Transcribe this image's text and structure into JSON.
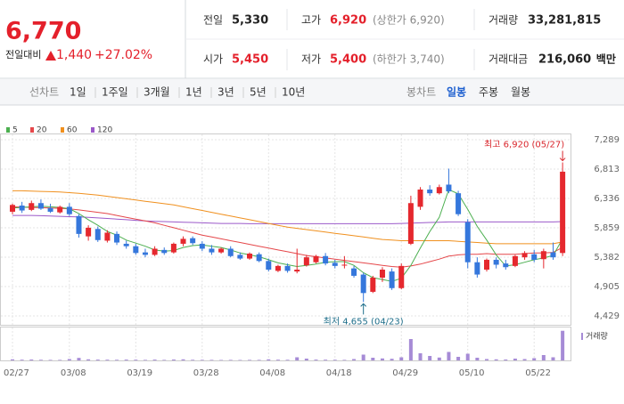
{
  "quote": {
    "price": "6,770",
    "change_label": "전일대비",
    "change": "1,440",
    "change_pct": "+27.02%",
    "fields": [
      {
        "label": "전일",
        "value": "5,330"
      },
      {
        "label": "고가",
        "value": "6,920",
        "note": "(상한가 6,920)"
      },
      {
        "label": "거래량",
        "value": "33,281,815"
      },
      {
        "label": "시가",
        "value": "5,450"
      },
      {
        "label": "저가",
        "value": "5,400",
        "note": "(하한가 3,740)"
      },
      {
        "label": "거래대금",
        "value": "216,060",
        "note": "백만"
      }
    ]
  },
  "toolbar": {
    "line_label": "선차트",
    "periods": [
      "1일",
      "1주일",
      "3개월",
      "1년",
      "3년",
      "5년",
      "10년"
    ],
    "candle_label": "봉차트",
    "candle_periods": [
      "일봉",
      "주봉",
      "월봉"
    ]
  },
  "chart_data": {
    "type": "candlestick",
    "categories": [
      "02/27",
      null,
      null,
      null,
      null,
      null,
      "03/08",
      null,
      null,
      null,
      null,
      null,
      null,
      "03/19",
      null,
      null,
      null,
      null,
      null,
      null,
      "03/28",
      null,
      null,
      null,
      null,
      null,
      null,
      "04/08",
      null,
      null,
      null,
      null,
      null,
      null,
      "04/18",
      null,
      null,
      null,
      null,
      null,
      null,
      "04/29",
      null,
      null,
      null,
      null,
      null,
      null,
      "05/10",
      null,
      null,
      null,
      null,
      null,
      null,
      "05/22",
      null,
      null,
      null
    ],
    "open": [
      6120,
      6220,
      6150,
      6260,
      6180,
      6110,
      6200,
      6050,
      5720,
      5840,
      5650,
      5760,
      5600,
      5560,
      5460,
      5420,
      5500,
      5460,
      5600,
      5690,
      5600,
      5520,
      5460,
      5520,
      5420,
      5360,
      5430,
      5320,
      5160,
      5240,
      5150,
      5250,
      5300,
      5400,
      5290,
      5250,
      5200,
      5100,
      4820,
      5050,
      5150,
      4880,
      5600,
      6200,
      6480,
      6420,
      6560,
      6420,
      5950,
      5300,
      5180,
      5340,
      5280,
      5240,
      5380,
      5430,
      5350,
      5460,
      5450
    ],
    "high": [
      6250,
      6280,
      6300,
      6320,
      6250,
      6220,
      6260,
      6080,
      5900,
      5880,
      5820,
      5800,
      5650,
      5600,
      5520,
      5560,
      5540,
      5620,
      5720,
      5720,
      5640,
      5580,
      5540,
      5560,
      5460,
      5460,
      5460,
      5360,
      5260,
      5280,
      5520,
      5420,
      5420,
      5450,
      5340,
      5400,
      5240,
      5130,
      5080,
      5220,
      5200,
      5280,
      6380,
      6520,
      6550,
      6560,
      6820,
      6460,
      6000,
      5380,
      5360,
      5380,
      5340,
      5420,
      5480,
      5500,
      5520,
      5620,
      6920
    ],
    "low": [
      6080,
      6100,
      6130,
      6150,
      6100,
      6090,
      6050,
      5700,
      5650,
      5630,
      5620,
      5580,
      5520,
      5420,
      5380,
      5400,
      5420,
      5440,
      5560,
      5580,
      5480,
      5420,
      5440,
      5380,
      5340,
      5340,
      5300,
      5150,
      5140,
      5130,
      5120,
      5230,
      5280,
      5250,
      5200,
      5200,
      5050,
      4655,
      4800,
      4980,
      4850,
      4860,
      5580,
      6150,
      6380,
      6400,
      6420,
      6050,
      5200,
      5050,
      5150,
      5200,
      5180,
      5220,
      5340,
      5300,
      5200,
      5340,
      5400
    ],
    "close": [
      6230,
      6140,
      6260,
      6170,
      6120,
      6200,
      6080,
      5760,
      5860,
      5660,
      5780,
      5620,
      5560,
      5450,
      5420,
      5520,
      5450,
      5600,
      5680,
      5610,
      5520,
      5460,
      5520,
      5400,
      5360,
      5440,
      5320,
      5180,
      5240,
      5160,
      5180,
      5380,
      5400,
      5280,
      5240,
      5260,
      5080,
      4800,
      5050,
      5180,
      4880,
      5240,
      6260,
      6480,
      6420,
      6520,
      6450,
      6080,
      5300,
      5100,
      5340,
      5260,
      5220,
      5400,
      5450,
      5340,
      5480,
      5380,
      6770
    ],
    "up_color": "#e5282e",
    "down_color": "#3577dc",
    "series": [
      {
        "name": "5",
        "color": "#4caf50",
        "values": [
          6180,
          6190,
          6200,
          6210,
          6200,
          6190,
          6170,
          6090,
          5990,
          5900,
          5800,
          5740,
          5660,
          5610,
          5560,
          5500,
          5480,
          5490,
          5540,
          5570,
          5580,
          5560,
          5540,
          5500,
          5450,
          5420,
          5390,
          5340,
          5290,
          5260,
          5230,
          5250,
          5270,
          5300,
          5310,
          5310,
          5250,
          5130,
          5050,
          5020,
          4990,
          5040,
          5250,
          5530,
          5800,
          6030,
          6480,
          6410,
          6160,
          5880,
          5660,
          5420,
          5240,
          5260,
          5300,
          5340,
          5370,
          5410,
          5680
        ]
      },
      {
        "name": "20",
        "color": "#e5474a",
        "values": [
          6200,
          6195,
          6190,
          6185,
          6180,
          6175,
          6165,
          6150,
          6130,
          6110,
          6090,
          6060,
          6030,
          6000,
          5970,
          5940,
          5900,
          5860,
          5820,
          5780,
          5740,
          5710,
          5680,
          5650,
          5620,
          5590,
          5560,
          5530,
          5500,
          5470,
          5440,
          5410,
          5390,
          5370,
          5350,
          5330,
          5310,
          5290,
          5270,
          5250,
          5230,
          5220,
          5240,
          5270,
          5310,
          5350,
          5400,
          5420,
          5430,
          5430,
          5440,
          5430,
          5430,
          5430,
          5440,
          5450,
          5450,
          5460,
          5540
        ]
      },
      {
        "name": "60",
        "color": "#f0901e",
        "values": [
          6460,
          6460,
          6455,
          6450,
          6445,
          6440,
          6430,
          6420,
          6405,
          6390,
          6370,
          6350,
          6330,
          6310,
          6290,
          6270,
          6250,
          6230,
          6200,
          6170,
          6140,
          6110,
          6080,
          6050,
          6020,
          5990,
          5960,
          5930,
          5900,
          5870,
          5850,
          5830,
          5810,
          5790,
          5770,
          5750,
          5730,
          5710,
          5690,
          5670,
          5660,
          5650,
          5650,
          5650,
          5650,
          5650,
          5650,
          5640,
          5630,
          5620,
          5610,
          5600,
          5600,
          5600,
          5600,
          5600,
          5600,
          5600,
          5630
        ]
      },
      {
        "name": "120",
        "color": "#9b59c9",
        "values": [
          6060,
          6060,
          6060,
          6055,
          6050,
          6045,
          6040,
          6035,
          6030,
          6020,
          6010,
          6000,
          5990,
          5980,
          5970,
          5965,
          5960,
          5955,
          5950,
          5945,
          5940,
          5935,
          5930,
          5930,
          5930,
          5925,
          5925,
          5925,
          5925,
          5925,
          5925,
          5925,
          5925,
          5925,
          5925,
          5925,
          5925,
          5925,
          5925,
          5925,
          5925,
          5930,
          5935,
          5940,
          5945,
          5950,
          5955,
          5955,
          5955,
          5955,
          5955,
          5955,
          5955,
          5955,
          5955,
          5955,
          5955,
          5955,
          5960
        ]
      }
    ],
    "volume": {
      "name": "거래량",
      "color": "#a68bd6",
      "ylim": [
        0,
        37000000
      ],
      "values": [
        1200000,
        800000,
        1000000,
        700000,
        600000,
        600000,
        1500000,
        2800000,
        1200000,
        900000,
        800000,
        700000,
        900000,
        800000,
        600000,
        900000,
        600000,
        1000000,
        1200000,
        700000,
        600000,
        600000,
        500000,
        600000,
        500000,
        600000,
        600000,
        1200000,
        800000,
        700000,
        3500000,
        2000000,
        900000,
        800000,
        700000,
        600000,
        1500000,
        6500000,
        3000000,
        2200000,
        1800000,
        3500000,
        24000000,
        8000000,
        5000000,
        3200000,
        9500000,
        4000000,
        7500000,
        3000000,
        1500000,
        1200000,
        1000000,
        2000000,
        1500000,
        2500000,
        6000000,
        3500000,
        33281815
      ]
    },
    "ylim": [
      4429,
      7289
    ],
    "yticks": [
      {
        "value": 4429,
        "label": "4,429"
      },
      {
        "value": 4905,
        "label": "4,905"
      },
      {
        "value": 5382,
        "label": "5,382"
      },
      {
        "value": 5859,
        "label": "5,859"
      },
      {
        "value": 6336,
        "label": "6,336"
      },
      {
        "value": 6813,
        "label": "6,813"
      },
      {
        "value": 7289,
        "label": "7,289"
      }
    ],
    "grid": true,
    "high_label": "최고 6,920 (05/27)",
    "low_label": "최저 4,655 (04/23)"
  }
}
